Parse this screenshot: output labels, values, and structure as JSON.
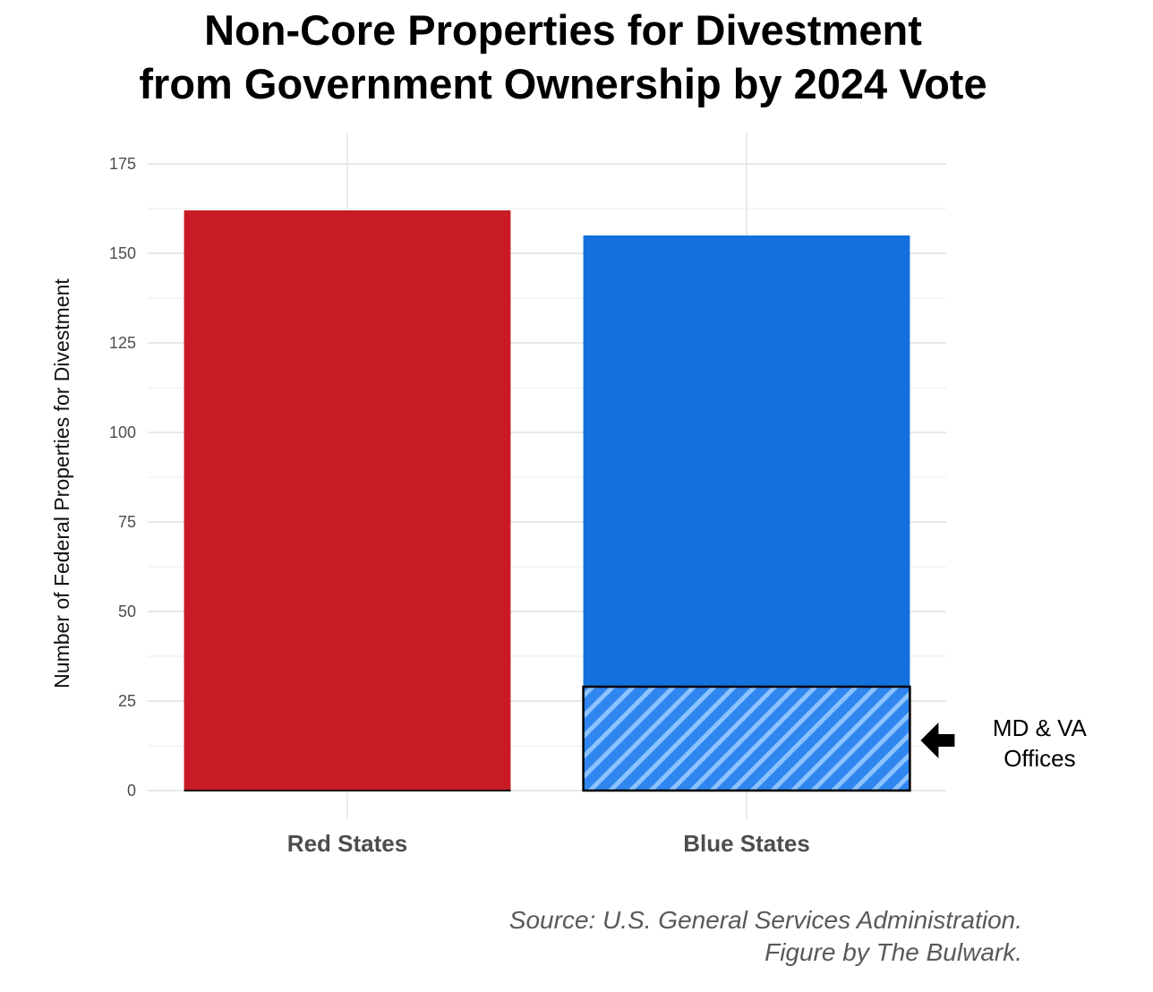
{
  "chart_data": {
    "type": "bar",
    "title": "Non-Core Properties for Divestment from Government Ownership by 2024 Vote",
    "title_lines": [
      "Non-Core Properties for Divestment",
      "from Government Ownership by 2024 Vote"
    ],
    "xlabel": "",
    "ylabel": "Number of Federal Properties for Divestment",
    "ylim": [
      0,
      180
    ],
    "yticks": [
      0,
      25,
      50,
      75,
      100,
      125,
      150,
      175
    ],
    "grid": true,
    "categories": [
      "Red States",
      "Blue States"
    ],
    "values": [
      162,
      155
    ],
    "colors": {
      "Red States": "#c81b25",
      "Blue States": "#1470dc",
      "highlight_fill": "#2f86ee",
      "highlight_stripe": "#8cc2ff"
    },
    "highlight": {
      "category": "Blue States",
      "value": 29,
      "pattern": "diagonal hatch",
      "label_lines": [
        "MD & VA",
        "Offices"
      ],
      "arrow": "left"
    },
    "caption_lines": [
      "Source: U.S. General Services Administration.",
      "Figure by The Bulwark."
    ]
  }
}
